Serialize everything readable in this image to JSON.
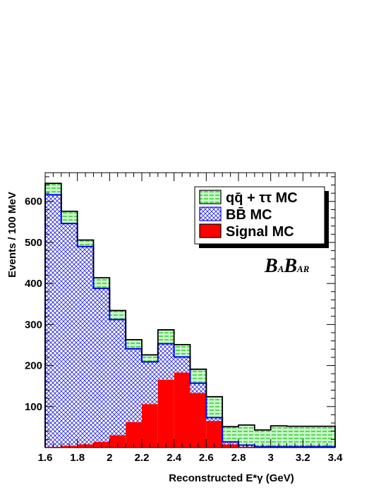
{
  "chart_data": {
    "type": "bar",
    "xlabel": "Reconstructed E*γ (GeV)",
    "ylabel": "Events / 100 MeV",
    "xlim": [
      1.6,
      3.4
    ],
    "ylim": [
      0,
      670
    ],
    "xticks": [
      "1.6",
      "1.8",
      "2",
      "2.2",
      "2.4",
      "2.6",
      "2.8",
      "3",
      "3.2",
      "3.4"
    ],
    "yticks": [
      "100",
      "200",
      "300",
      "400",
      "500",
      "600"
    ],
    "bin_edges": [
      1.6,
      1.7,
      1.8,
      1.9,
      2.0,
      2.1,
      2.2,
      2.3,
      2.4,
      2.5,
      2.6,
      2.7,
      2.8,
      2.9,
      3.0,
      3.1,
      3.2,
      3.3,
      3.4
    ],
    "stacking": "stacked",
    "series": [
      {
        "name": "Signal MC",
        "color": "#ff0000",
        "values": [
          2,
          4,
          8,
          14,
          30,
          62,
          106,
          165,
          183,
          133,
          65,
          8,
          2,
          1,
          1,
          1,
          1,
          1
        ]
      },
      {
        "name": "BB̄ MC",
        "color": "#0000ff",
        "values": [
          614,
          542,
          482,
          374,
          282,
          179,
          103,
          88,
          38,
          24,
          8,
          6,
          4,
          1,
          1,
          1,
          1,
          1
        ]
      },
      {
        "name": "qq̄ + ττ MC",
        "color": "#00c000",
        "values": [
          28,
          30,
          16,
          26,
          22,
          22,
          17,
          34,
          30,
          34,
          51,
          37,
          49,
          41,
          51,
          50,
          50,
          50
        ]
      }
    ],
    "totals": [
      644,
      576,
      506,
      414,
      334,
      263,
      226,
      287,
      251,
      191,
      124,
      51,
      55,
      43,
      53,
      52,
      52,
      52
    ],
    "legend": {
      "position": "top-right",
      "entries": [
        {
          "label": "qq̄ + ττ MC",
          "pattern": "green-brick"
        },
        {
          "label": "BB̄ MC",
          "pattern": "blue-crosshatch"
        },
        {
          "label": "Signal MC",
          "pattern": "red-solid"
        }
      ]
    },
    "logo_text": "BABAR",
    "grid": false
  }
}
